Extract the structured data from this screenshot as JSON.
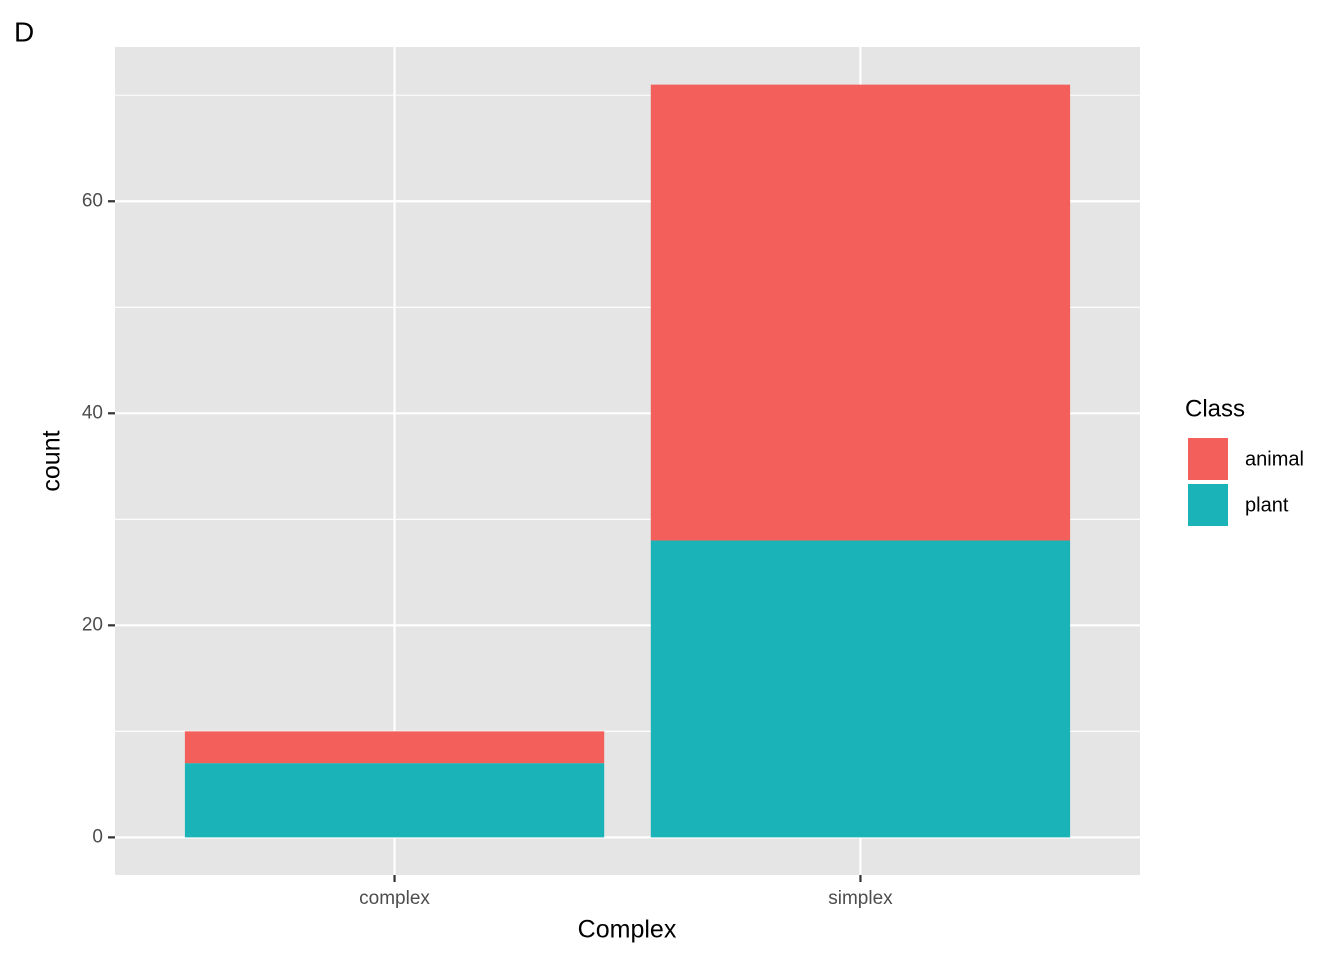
{
  "chart_data": {
    "type": "stacked_bar",
    "tag": "D",
    "x_label": "Complex",
    "y_label": "count",
    "categories": [
      "complex",
      "simplex"
    ],
    "series": [
      {
        "name": "animal",
        "color": "#f3605b",
        "values": [
          3,
          43
        ]
      },
      {
        "name": "plant",
        "color": "#1ab3b8",
        "values": [
          7,
          28
        ]
      }
    ],
    "legend_title": "Class",
    "legend_position": "right",
    "ylim": [
      -3.55,
      74.55
    ],
    "yticks": [
      0,
      20,
      40,
      60
    ],
    "minor_yticks": [
      10,
      30,
      50,
      70
    ],
    "grid": true
  }
}
